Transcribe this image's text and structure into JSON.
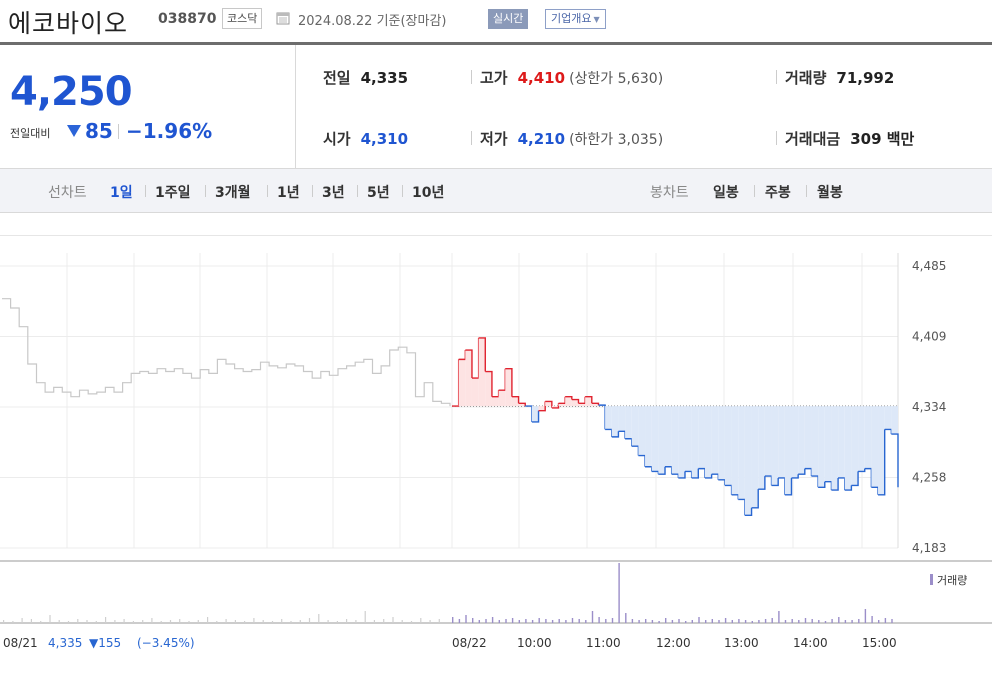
{
  "header": {
    "company_name": "에코바이오",
    "stock_code": "038870",
    "market": "코스닥",
    "date_text": "2024.08.22  기준(장마감)",
    "realtime_label": "실시간",
    "overview_label": "기업개요"
  },
  "price": {
    "current": "4,250",
    "change_label": "전일대비",
    "change_value": "85",
    "change_rate": "−1.96%"
  },
  "stats": {
    "prev_close_label": "전일",
    "prev_close": "4,335",
    "high_label": "고가",
    "high": "4,410",
    "upper_limit_text": "(상한가 5,630)",
    "volume_label": "거래량",
    "volume": "71,992",
    "open_label": "시가",
    "open": "4,310",
    "low_label": "저가",
    "low": "4,210",
    "lower_limit_text": "(하한가 3,035)",
    "amount_label": "거래대금",
    "amount": "309 백만"
  },
  "menu": {
    "line_chart_label": "선차트",
    "periods": [
      "1일",
      "1주일",
      "3개월",
      "1년",
      "3년",
      "5년",
      "10년"
    ],
    "active_period": "1일",
    "candle_chart_label": "봉차트",
    "candle_periods": [
      "일봉",
      "주봉",
      "월봉"
    ]
  },
  "colors": {
    "up": "#e0232f",
    "down": "#2866d1",
    "prev_day": "#c8c8c8",
    "volume": "#9b8ec9"
  },
  "chart_data": {
    "type": "line",
    "y_ticks": [
      "4,485",
      "4,409",
      "4,334",
      "4,258",
      "4,183"
    ],
    "ylim": [
      4183,
      4485
    ],
    "reference_value": 4335,
    "x_ticks": [
      "08/22",
      "10:00",
      "11:00",
      "12:00",
      "13:00",
      "14:00",
      "15:00"
    ],
    "prev_day_label": "08/21",
    "prev_day_close": "4,335",
    "prev_day_change": "▼155",
    "prev_day_rate": "(−3.45%)",
    "volume_legend": "거래량",
    "series": [
      {
        "name": "08/21",
        "values": [
          4450,
          4440,
          4420,
          4380,
          4360,
          4350,
          4355,
          4350,
          4345,
          4352,
          4348,
          4350,
          4355,
          4350,
          4360,
          4370,
          4372,
          4370,
          4375,
          4372,
          4375,
          4370,
          4365,
          4374,
          4370,
          4385,
          4380,
          4375,
          4372,
          4374,
          4382,
          4378,
          4376,
          4380,
          4378,
          4372,
          4365,
          4372,
          4368,
          4375,
          4378,
          4382,
          4385,
          4370,
          4378,
          4395,
          4398,
          4392,
          4345,
          4360,
          4340,
          4338,
          4335
        ]
      },
      {
        "name": "08/22",
        "values": [
          4335,
          4385,
          4395,
          4365,
          4408,
          4372,
          4345,
          4352,
          4375,
          4345,
          4338,
          4335,
          4318,
          4330,
          4340,
          4333,
          4338,
          4345,
          4342,
          4338,
          4345,
          4338,
          4336,
          4310,
          4302,
          4308,
          4300,
          4292,
          4282,
          4270,
          4265,
          4262,
          4270,
          4262,
          4258,
          4265,
          4258,
          4268,
          4258,
          4262,
          4256,
          4250,
          4240,
          4235,
          4218,
          4226,
          4246,
          4260,
          4250,
          4258,
          4240,
          4258,
          4262,
          4268,
          4260,
          4248,
          4254,
          4245,
          4258,
          4245,
          4250,
          4265,
          4268,
          4248,
          4240,
          4310,
          4305,
          4248
        ]
      }
    ],
    "volume_08_21": [
      3,
      2,
      5,
      4,
      2,
      8,
      3,
      2,
      4,
      3,
      2,
      6,
      3,
      4,
      2,
      3,
      5,
      2,
      3,
      4,
      2,
      3,
      6,
      2,
      4,
      3,
      2,
      5,
      3,
      2,
      4,
      2,
      3,
      5,
      9,
      3,
      2,
      4,
      3,
      12,
      3,
      4,
      6,
      3,
      2,
      5,
      3,
      4
    ],
    "volume_08_22": [
      6,
      4,
      8,
      5,
      3,
      4,
      6,
      3,
      4,
      5,
      3,
      4,
      3,
      5,
      4,
      3,
      4,
      3,
      5,
      4,
      3,
      12,
      6,
      4,
      5,
      60,
      10,
      4,
      3,
      4,
      3,
      2,
      5,
      3,
      4,
      2,
      3,
      6,
      3,
      4,
      3,
      5,
      3,
      4,
      3,
      2,
      3,
      4,
      5,
      12,
      3,
      4,
      3,
      5,
      4,
      3,
      2,
      4,
      6,
      3,
      3,
      4,
      14,
      7,
      3,
      5,
      4
    ]
  }
}
